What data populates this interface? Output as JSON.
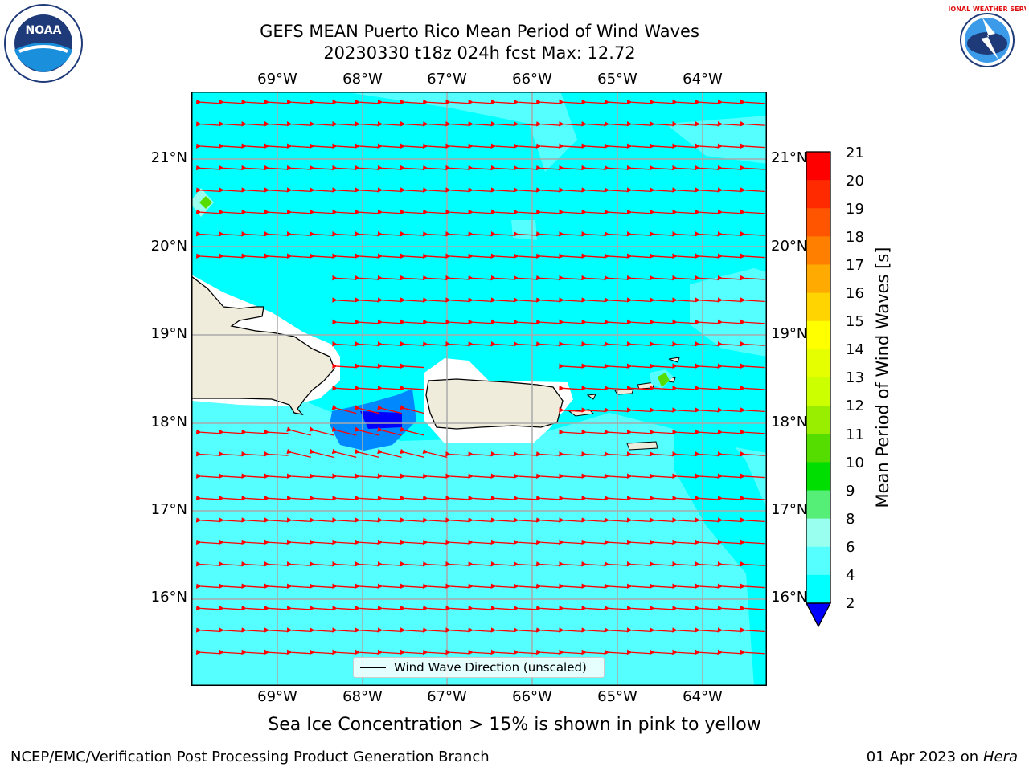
{
  "title": {
    "line1": "GEFS MEAN Puerto Rico Mean Period of Wind Waves",
    "line2": "20230330 t18z 024h fcst   Max: 12.72"
  },
  "lon_labels": [
    "69°W",
    "68°W",
    "67°W",
    "66°W",
    "65°W",
    "64°W"
  ],
  "lat_labels": [
    "21°N",
    "20°N",
    "19°N",
    "18°N",
    "17°N",
    "16°N"
  ],
  "legend": {
    "label": "Wind Wave Direction (unscaled)"
  },
  "colorbar": {
    "title": "Mean Period of Wind Waves [s]",
    "ticks": [
      "21",
      "20",
      "19",
      "18",
      "17",
      "16",
      "15",
      "14",
      "13",
      "12",
      "11",
      "10",
      "9",
      "8",
      "6",
      "4",
      "2"
    ],
    "colors": [
      "#ff0000",
      "#ff2a00",
      "#ff5500",
      "#ff8000",
      "#ffaa00",
      "#ffd400",
      "#ffff00",
      "#e6ff00",
      "#ccff00",
      "#99ee00",
      "#55dd00",
      "#00dd00",
      "#55ee77",
      "#99ffee",
      "#55ffff",
      "#00ffff",
      "#0088ff",
      "#0000ff"
    ],
    "extend_color": "#0000ff"
  },
  "subtitle": "Sea Ice Concentration > 15% is shown in pink to yellow",
  "footer": {
    "left": "NCEP/EMC/Verification Post Processing Product Generation Branch",
    "right_prefix": "01 Apr 2023 on ",
    "right_machine": "Hera"
  },
  "logos": {
    "left": "NOAA",
    "right": "NATIONAL WEATHER SERVICE"
  },
  "map_colors": {
    "ocean_main": "#00ffff",
    "ocean_light": "#55ffff",
    "ocean_pale": "#99ffee",
    "land": "#efecdc",
    "arrow": "#ff0000"
  }
}
